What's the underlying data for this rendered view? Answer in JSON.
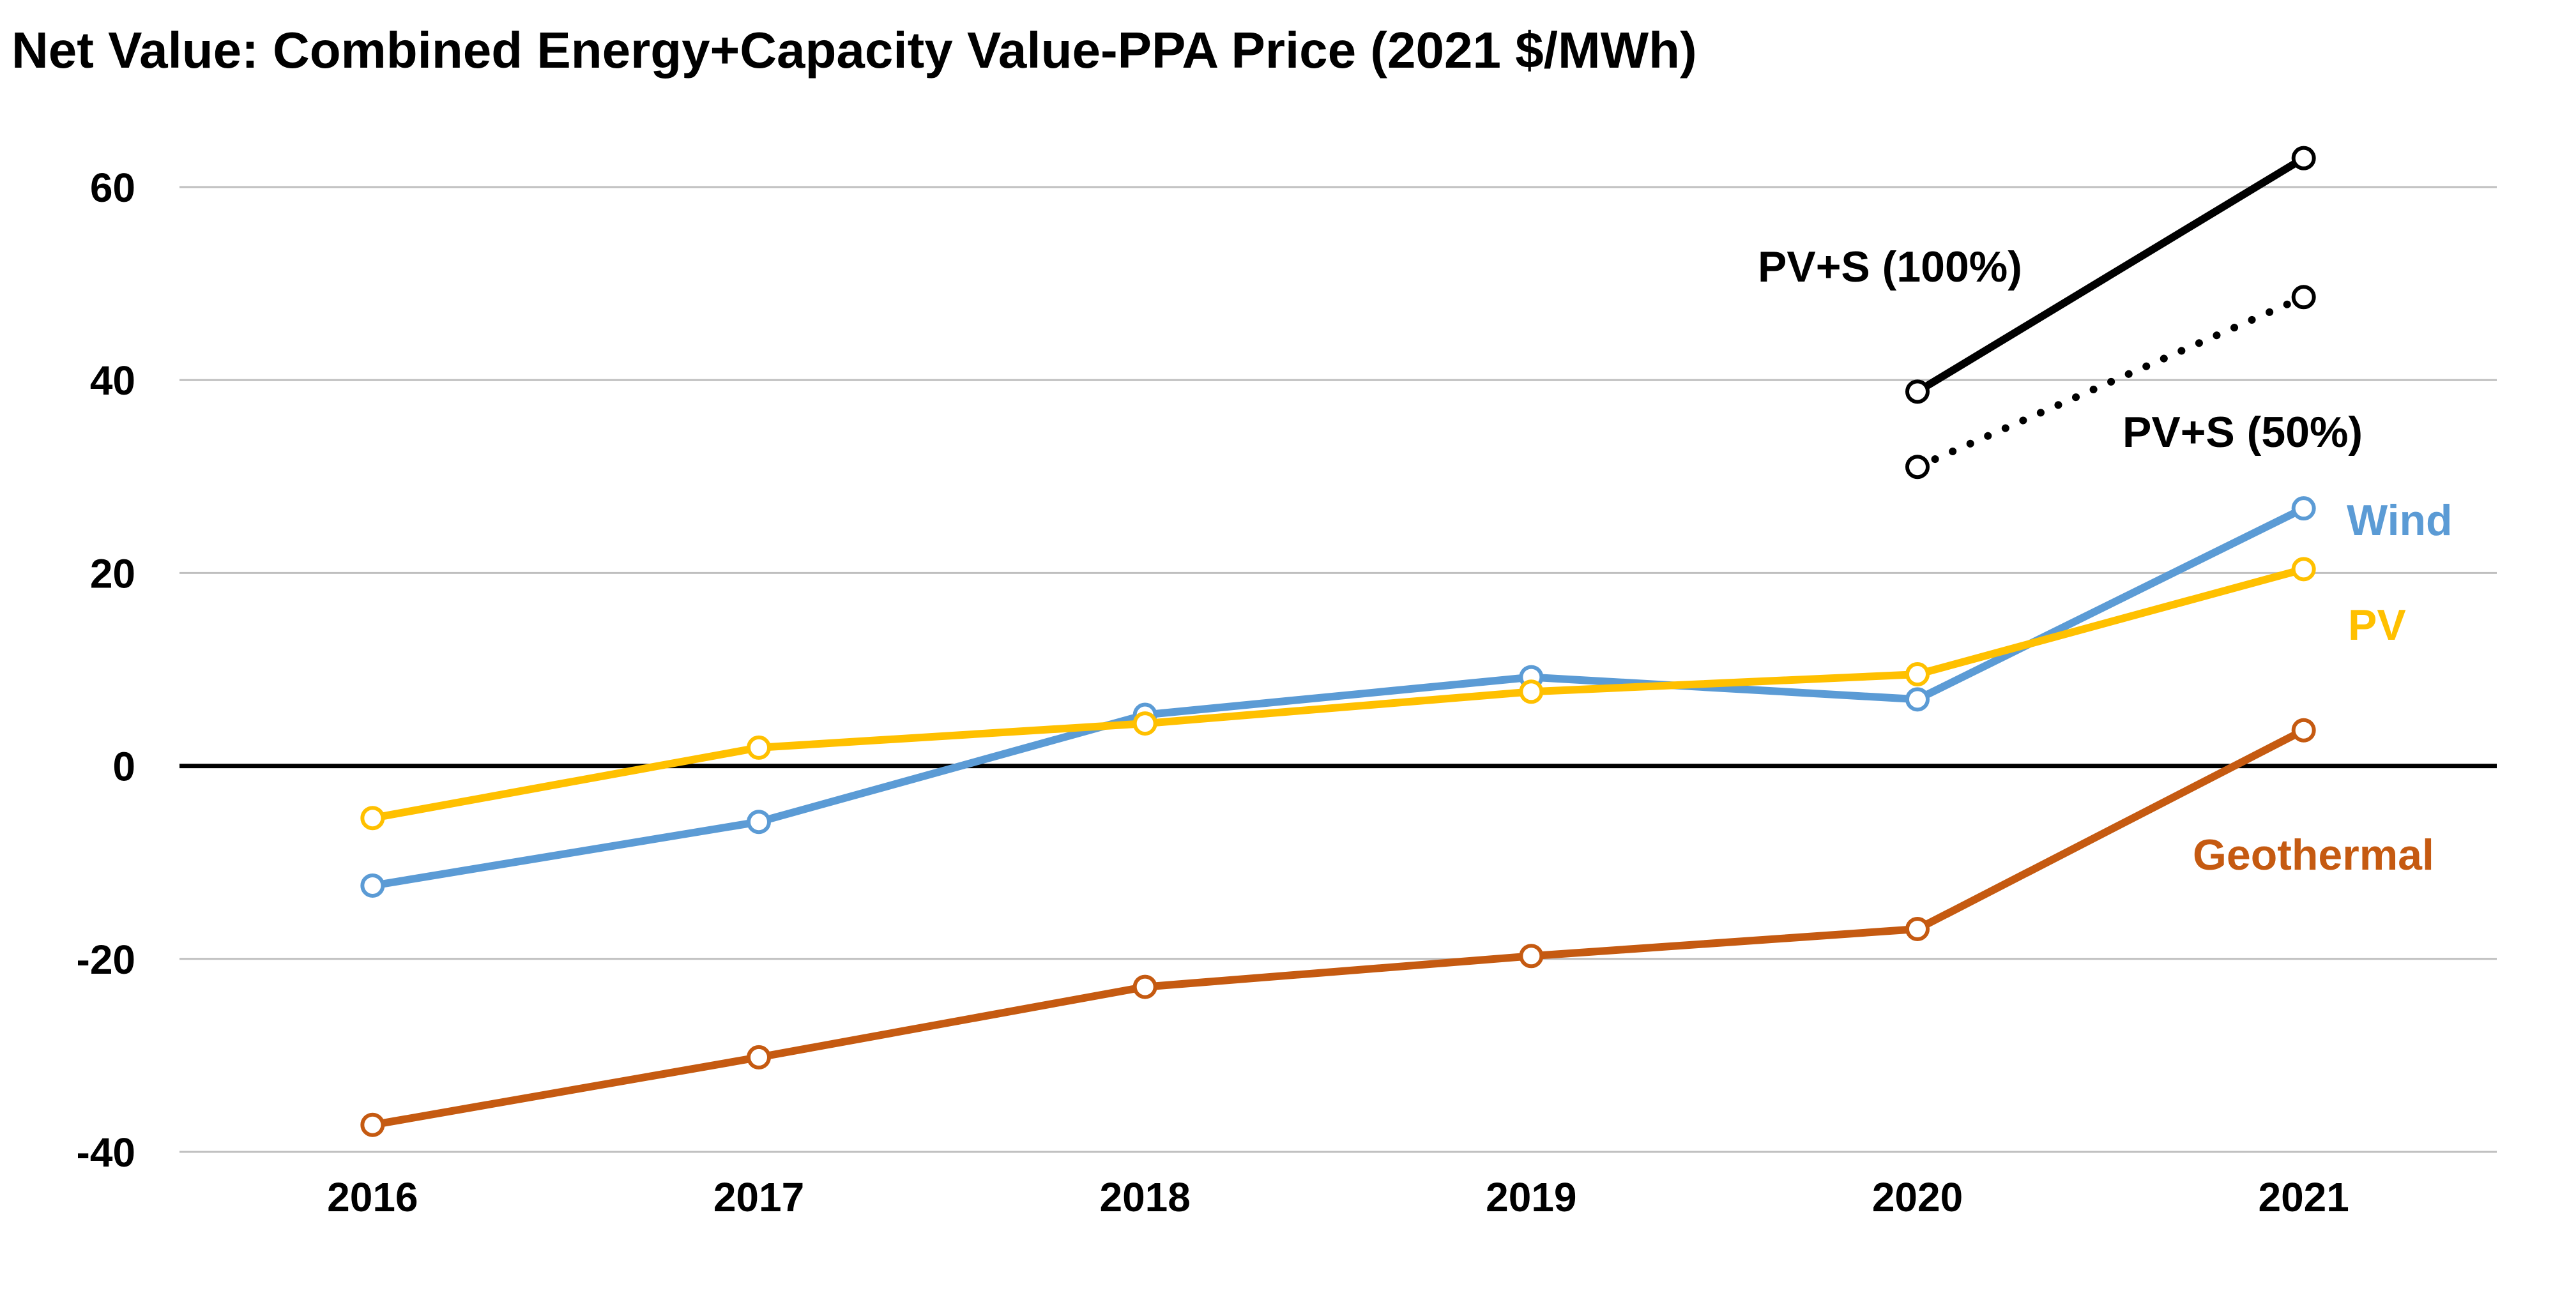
{
  "chart_data": {
    "type": "line",
    "title": "Net Value: Combined Energy+Capacity Value-PPA Price (2021 $/MWh)",
    "xlabel": "",
    "ylabel": "",
    "categories": [
      "2016",
      "2017",
      "2018",
      "2019",
      "2020",
      "2021"
    ],
    "ylim": [
      -40,
      60
    ],
    "yticks": [
      60,
      40,
      20,
      0,
      -20,
      -40
    ],
    "ytick_labels": [
      "60",
      "40",
      "20",
      "0",
      "-20",
      "-40"
    ],
    "grid": true,
    "legend": "none (direct series labels at right)",
    "series": [
      {
        "name": "Wind",
        "label": "Wind",
        "color": "#5B9BD5",
        "dash": "solid",
        "values": [
          -12.4,
          -5.8,
          5.3,
          9.2,
          6.9,
          26.7
        ]
      },
      {
        "name": "PV",
        "label": "PV",
        "color": "#FFC000",
        "dash": "solid",
        "values": [
          -5.4,
          1.9,
          4.4,
          7.7,
          9.5,
          20.4
        ]
      },
      {
        "name": "Geothermal",
        "label": "Geothermal",
        "color": "#C55A11",
        "dash": "solid",
        "values": [
          -37.2,
          -30.2,
          -22.9,
          -19.7,
          -16.9,
          3.7
        ]
      },
      {
        "name": "PV+S (100%)",
        "label": "PV+S (100%)",
        "color": "#000000",
        "dash": "solid",
        "values": [
          null,
          null,
          null,
          null,
          38.8,
          63.0
        ]
      },
      {
        "name": "PV+S (50%)",
        "label": "PV+S (50%)",
        "color": "#000000",
        "dash": "dotted",
        "values": [
          null,
          null,
          null,
          null,
          31.0,
          48.6
        ]
      }
    ]
  }
}
